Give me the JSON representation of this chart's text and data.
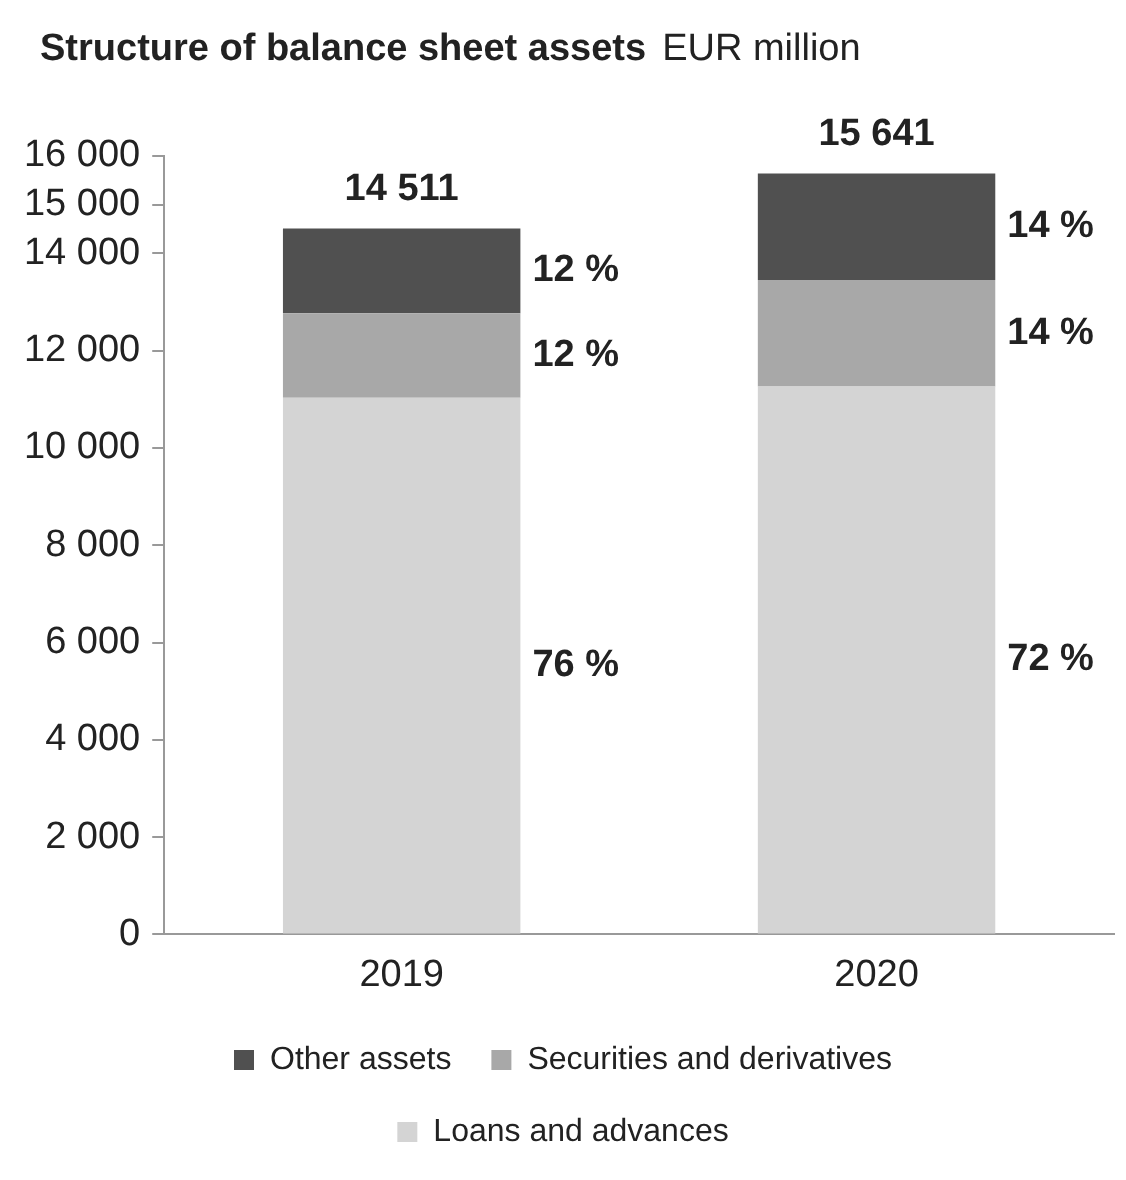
{
  "chart_data": {
    "type": "bar",
    "title": "Structure of balance sheet assets",
    "subtitle": "EUR million",
    "categories": [
      "2019",
      "2020"
    ],
    "stacked": true,
    "ylim": [
      0,
      16000
    ],
    "yticks": [
      {
        "value": 0,
        "label": "0"
      },
      {
        "value": 2000,
        "label": "2 000"
      },
      {
        "value": 4000,
        "label": "4 000"
      },
      {
        "value": 6000,
        "label": "6 000"
      },
      {
        "value": 8000,
        "label": "8 000"
      },
      {
        "value": 10000,
        "label": "10 000"
      },
      {
        "value": 12000,
        "label": "12 000"
      },
      {
        "value": 14000,
        "label": "14 000"
      },
      {
        "value": 15000,
        "label": "15 000"
      },
      {
        "value": 16000,
        "label": "16 000"
      }
    ],
    "grid": false,
    "legend": "bottom",
    "series": [
      {
        "name": "Loans and advances",
        "color": "#d4d4d4",
        "values": [
          11030,
          11262
        ]
      },
      {
        "name": "Securities and derivatives",
        "color": "#a8a8a8",
        "values": [
          1740,
          2190
        ]
      },
      {
        "name": "Other assets",
        "color": "#505050",
        "values": [
          1741,
          2189
        ]
      }
    ],
    "annotations": [
      "76 %",
      "12 %",
      "12 %",
      "72 %",
      "14 %",
      "14 %"
    ],
    "totals": [
      "14 511",
      "15 641"
    ]
  }
}
